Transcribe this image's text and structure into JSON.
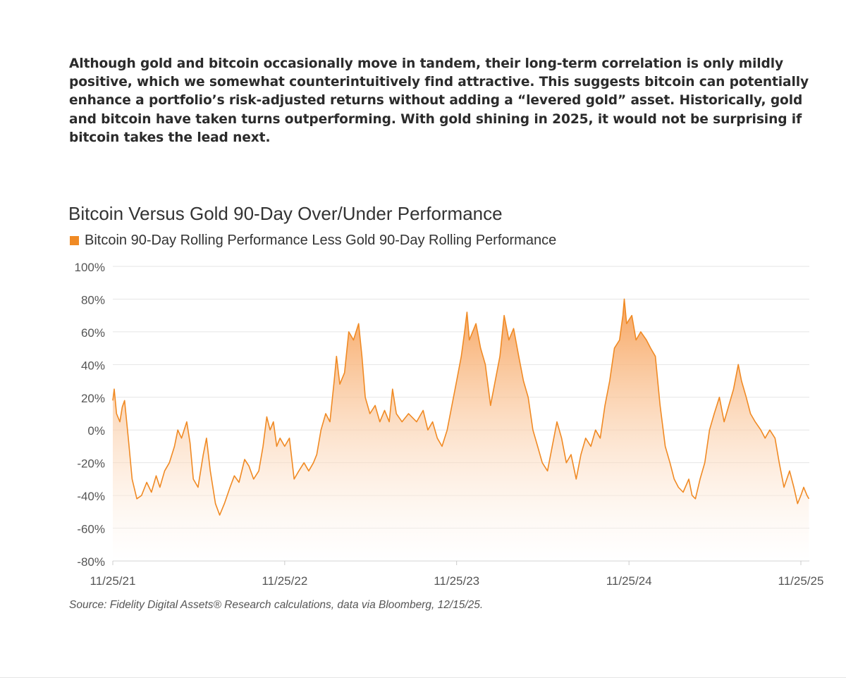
{
  "intro_text": "Although gold and bitcoin occasionally move in tandem, their long-term correlation is only mildly positive, which we somewhat counterintuitively find attractive. This suggests bitcoin can potentially enhance a portfolio’s risk-adjusted returns without adding a “levered gold” asset. Historically, gold and bitcoin have taken turns outperforming. With gold shining in 2025, it would not be surprising if bitcoin takes the lead next.",
  "source": "Source: Fidelity Digital Assets® Research calculations, data via Bloomberg, 12/15/25.",
  "colors": {
    "series": "#f08a24",
    "fill_top": "#f7a35c",
    "grid": "#e5e5e5",
    "tick": "#555555"
  },
  "chart_data": {
    "type": "area",
    "title": "Bitcoin Versus Gold 90-Day Over/Under Performance",
    "xlabel": "",
    "ylabel": "",
    "ylim": [
      -80,
      100
    ],
    "xlim": [
      "11/25/21",
      "11/25/25"
    ],
    "grid": true,
    "legend_position": "top-left",
    "y_ticks": [
      "100%",
      "80%",
      "60%",
      "40%",
      "20%",
      "0%",
      "-20%",
      "-40%",
      "-60%",
      "-80%"
    ],
    "x_ticks": [
      "11/25/21",
      "11/25/22",
      "11/25/23",
      "11/25/24",
      "11/25/25"
    ],
    "series": [
      {
        "name": "Bitcoin 90-Day Rolling Performance Less Gold 90-Day Rolling Performance",
        "points": [
          [
            "2021-11-25",
            18
          ],
          [
            "2021-11-28",
            25
          ],
          [
            "2021-12-03",
            10
          ],
          [
            "2021-12-10",
            5
          ],
          [
            "2021-12-15",
            14
          ],
          [
            "2021-12-20",
            18
          ],
          [
            "2021-12-28",
            -5
          ],
          [
            "2022-01-05",
            -30
          ],
          [
            "2022-01-15",
            -42
          ],
          [
            "2022-01-25",
            -40
          ],
          [
            "2022-02-05",
            -32
          ],
          [
            "2022-02-15",
            -38
          ],
          [
            "2022-02-25",
            -28
          ],
          [
            "2022-03-05",
            -35
          ],
          [
            "2022-03-15",
            -25
          ],
          [
            "2022-03-25",
            -20
          ],
          [
            "2022-04-05",
            -10
          ],
          [
            "2022-04-12",
            0
          ],
          [
            "2022-04-20",
            -5
          ],
          [
            "2022-05-01",
            5
          ],
          [
            "2022-05-08",
            -8
          ],
          [
            "2022-05-15",
            -30
          ],
          [
            "2022-05-25",
            -35
          ],
          [
            "2022-06-05",
            -15
          ],
          [
            "2022-06-12",
            -5
          ],
          [
            "2022-06-20",
            -25
          ],
          [
            "2022-07-01",
            -45
          ],
          [
            "2022-07-10",
            -52
          ],
          [
            "2022-07-20",
            -45
          ],
          [
            "2022-08-01",
            -35
          ],
          [
            "2022-08-10",
            -28
          ],
          [
            "2022-08-20",
            -32
          ],
          [
            "2022-09-01",
            -18
          ],
          [
            "2022-09-10",
            -22
          ],
          [
            "2022-09-20",
            -30
          ],
          [
            "2022-10-01",
            -25
          ],
          [
            "2022-10-10",
            -10
          ],
          [
            "2022-10-18",
            8
          ],
          [
            "2022-10-25",
            0
          ],
          [
            "2022-11-01",
            5
          ],
          [
            "2022-11-08",
            -10
          ],
          [
            "2022-11-15",
            -5
          ],
          [
            "2022-11-25",
            -10
          ],
          [
            "2022-12-05",
            -5
          ],
          [
            "2022-12-15",
            -30
          ],
          [
            "2022-12-25",
            -25
          ],
          [
            "2023-01-05",
            -20
          ],
          [
            "2023-01-15",
            -25
          ],
          [
            "2023-01-25",
            -20
          ],
          [
            "2023-02-01",
            -15
          ],
          [
            "2023-02-10",
            0
          ],
          [
            "2023-02-20",
            10
          ],
          [
            "2023-03-01",
            5
          ],
          [
            "2023-03-10",
            30
          ],
          [
            "2023-03-15",
            45
          ],
          [
            "2023-03-22",
            28
          ],
          [
            "2023-04-01",
            35
          ],
          [
            "2023-04-10",
            60
          ],
          [
            "2023-04-20",
            55
          ],
          [
            "2023-05-01",
            65
          ],
          [
            "2023-05-08",
            45
          ],
          [
            "2023-05-15",
            20
          ],
          [
            "2023-05-25",
            10
          ],
          [
            "2023-06-05",
            15
          ],
          [
            "2023-06-15",
            5
          ],
          [
            "2023-06-25",
            12
          ],
          [
            "2023-07-05",
            5
          ],
          [
            "2023-07-12",
            25
          ],
          [
            "2023-07-20",
            10
          ],
          [
            "2023-08-01",
            5
          ],
          [
            "2023-08-15",
            10
          ],
          [
            "2023-09-01",
            5
          ],
          [
            "2023-09-15",
            12
          ],
          [
            "2023-09-25",
            0
          ],
          [
            "2023-10-05",
            5
          ],
          [
            "2023-10-15",
            -5
          ],
          [
            "2023-10-25",
            -10
          ],
          [
            "2023-11-05",
            0
          ],
          [
            "2023-11-15",
            15
          ],
          [
            "2023-11-25",
            30
          ],
          [
            "2023-12-05",
            45
          ],
          [
            "2023-12-12",
            60
          ],
          [
            "2023-12-17",
            72
          ],
          [
            "2023-12-22",
            55
          ],
          [
            "2024-01-05",
            65
          ],
          [
            "2024-01-15",
            50
          ],
          [
            "2024-01-25",
            40
          ],
          [
            "2024-02-05",
            15
          ],
          [
            "2024-02-15",
            30
          ],
          [
            "2024-02-25",
            45
          ],
          [
            "2024-03-05",
            70
          ],
          [
            "2024-03-15",
            55
          ],
          [
            "2024-03-25",
            62
          ],
          [
            "2024-04-05",
            45
          ],
          [
            "2024-04-15",
            30
          ],
          [
            "2024-04-25",
            20
          ],
          [
            "2024-05-05",
            0
          ],
          [
            "2024-05-15",
            -10
          ],
          [
            "2024-05-25",
            -20
          ],
          [
            "2024-06-05",
            -25
          ],
          [
            "2024-06-15",
            -10
          ],
          [
            "2024-06-25",
            5
          ],
          [
            "2024-07-05",
            -5
          ],
          [
            "2024-07-15",
            -20
          ],
          [
            "2024-07-25",
            -15
          ],
          [
            "2024-08-05",
            -30
          ],
          [
            "2024-08-15",
            -15
          ],
          [
            "2024-08-25",
            -5
          ],
          [
            "2024-09-05",
            -10
          ],
          [
            "2024-09-15",
            0
          ],
          [
            "2024-09-25",
            -5
          ],
          [
            "2024-10-05",
            15
          ],
          [
            "2024-10-15",
            30
          ],
          [
            "2024-10-25",
            50
          ],
          [
            "2024-11-05",
            55
          ],
          [
            "2024-11-12",
            70
          ],
          [
            "2024-11-15",
            80
          ],
          [
            "2024-11-20",
            65
          ],
          [
            "2024-12-01",
            70
          ],
          [
            "2024-12-10",
            55
          ],
          [
            "2024-12-20",
            60
          ],
          [
            "2025-01-01",
            55
          ],
          [
            "2025-01-10",
            50
          ],
          [
            "2025-01-20",
            45
          ],
          [
            "2025-01-30",
            15
          ],
          [
            "2025-02-10",
            -10
          ],
          [
            "2025-02-20",
            -20
          ],
          [
            "2025-03-01",
            -30
          ],
          [
            "2025-03-10",
            -35
          ],
          [
            "2025-03-20",
            -38
          ],
          [
            "2025-04-01",
            -30
          ],
          [
            "2025-04-08",
            -40
          ],
          [
            "2025-04-15",
            -42
          ],
          [
            "2025-04-25",
            -30
          ],
          [
            "2025-05-05",
            -20
          ],
          [
            "2025-05-15",
            0
          ],
          [
            "2025-05-25",
            10
          ],
          [
            "2025-06-05",
            20
          ],
          [
            "2025-06-15",
            5
          ],
          [
            "2025-06-25",
            15
          ],
          [
            "2025-07-05",
            25
          ],
          [
            "2025-07-15",
            40
          ],
          [
            "2025-07-22",
            30
          ],
          [
            "2025-08-01",
            20
          ],
          [
            "2025-08-10",
            10
          ],
          [
            "2025-08-20",
            5
          ],
          [
            "2025-09-01",
            0
          ],
          [
            "2025-09-10",
            -5
          ],
          [
            "2025-09-20",
            0
          ],
          [
            "2025-10-01",
            -5
          ],
          [
            "2025-10-10",
            -20
          ],
          [
            "2025-10-20",
            -35
          ],
          [
            "2025-11-01",
            -25
          ],
          [
            "2025-11-10",
            -35
          ],
          [
            "2025-11-18",
            -45
          ],
          [
            "2025-11-25",
            -40
          ],
          [
            "2025-12-01",
            -35
          ],
          [
            "2025-12-08",
            -40
          ],
          [
            "2025-12-12",
            -42
          ]
        ]
      }
    ]
  }
}
